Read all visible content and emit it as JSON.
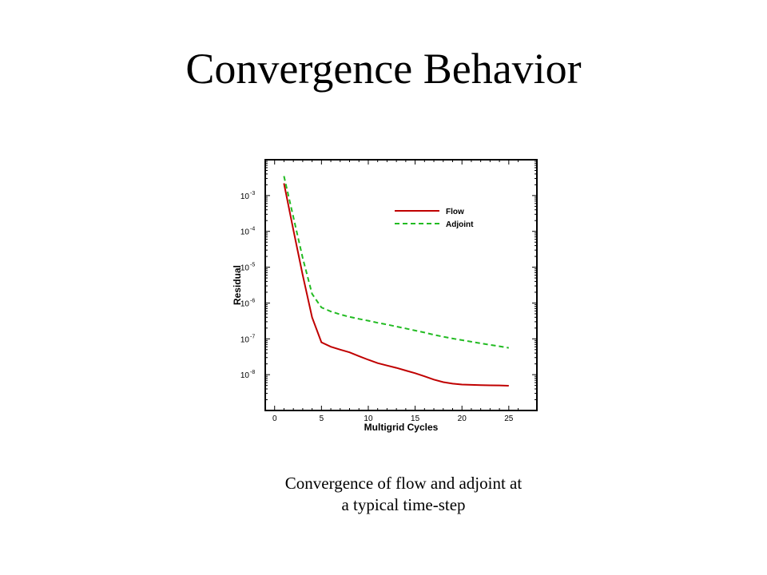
{
  "slide": {
    "title": "Convergence Behavior",
    "caption": "Convergence of flow and adjoint at a typical time-step"
  },
  "chart_data": {
    "type": "line",
    "xlabel": "Multigrid Cycles",
    "ylabel": "Residual",
    "xlim": [
      -1,
      28
    ],
    "ylim": [
      1e-09,
      0.01
    ],
    "yscale": "log",
    "x_ticks": [
      0,
      5,
      10,
      15,
      20,
      25
    ],
    "y_ticks": [
      {
        "value": 0.001,
        "mantissa": "10",
        "exp": "-3"
      },
      {
        "value": 0.0001,
        "mantissa": "10",
        "exp": "-4"
      },
      {
        "value": 1e-05,
        "mantissa": "10",
        "exp": "-5"
      },
      {
        "value": 1e-06,
        "mantissa": "10",
        "exp": "-6"
      },
      {
        "value": 1e-07,
        "mantissa": "10",
        "exp": "-7"
      },
      {
        "value": 1e-08,
        "mantissa": "10",
        "exp": "-8"
      }
    ],
    "legend_position": "top-right",
    "grid": false,
    "series": [
      {
        "name": "Flow",
        "color": "#c00000",
        "dash": "solid",
        "x": [
          1,
          2,
          3,
          4,
          5,
          6,
          7,
          8,
          9,
          10,
          11,
          12,
          13,
          14,
          15,
          16,
          17,
          18,
          19,
          20,
          21,
          22,
          23,
          24,
          25
        ],
        "y": [
          0.0022,
          0.00011,
          6e-06,
          4e-07,
          8e-08,
          6e-08,
          5e-08,
          4.2e-08,
          3.3e-08,
          2.6e-08,
          2.1e-08,
          1.8e-08,
          1.55e-08,
          1.3e-08,
          1.1e-08,
          9e-09,
          7.3e-09,
          6.2e-09,
          5.6e-09,
          5.3e-09,
          5.2e-09,
          5.1e-09,
          5.05e-09,
          5e-09,
          4.9e-09
        ]
      },
      {
        "name": "Adjoint",
        "color": "#22bb22",
        "dash": "dashed",
        "x": [
          1,
          2,
          3,
          4,
          5,
          6,
          7,
          8,
          9,
          10,
          11,
          12,
          13,
          14,
          15,
          16,
          17,
          18,
          19,
          20,
          21,
          22,
          23,
          24,
          25
        ],
        "y": [
          0.0035,
          0.00025,
          1.8e-05,
          1.8e-06,
          7.5e-07,
          5.8e-07,
          4.8e-07,
          4.1e-07,
          3.6e-07,
          3.2e-07,
          2.8e-07,
          2.5e-07,
          2.2e-07,
          1.95e-07,
          1.7e-07,
          1.5e-07,
          1.3e-07,
          1.15e-07,
          1.02e-07,
          9.2e-08,
          8.3e-08,
          7.5e-08,
          6.8e-08,
          6.2e-08,
          5.6e-08
        ]
      }
    ]
  }
}
